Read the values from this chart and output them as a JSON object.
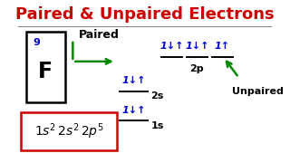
{
  "title": "Paired & Unpaired Electrons",
  "title_color": "#cc0000",
  "bg_color": "#ffffff",
  "element_symbol": "F",
  "element_number": "9",
  "element_symbol_color": "#000000",
  "element_number_color": "#0000cc",
  "box_color": "#000000",
  "config_box_color": "#cc0000",
  "paired_label": "Paired",
  "unpaired_label": "Unpaired",
  "label_color": "#000000",
  "arrow_color": "#008800",
  "electron_color": "#0000cc",
  "line_color": "#000000"
}
